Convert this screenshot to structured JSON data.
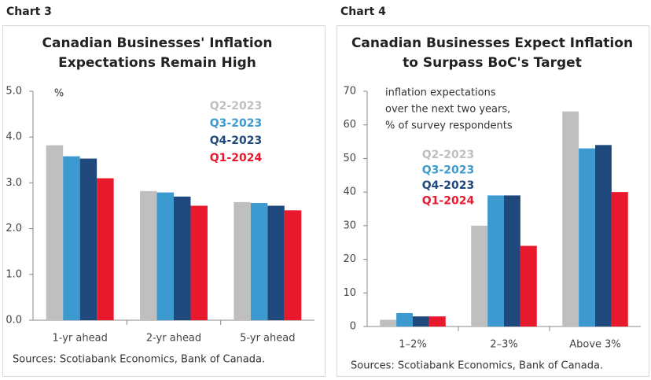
{
  "chart_data": [
    {
      "type": "bar",
      "label": "Chart 3",
      "title": [
        "Canadian Businesses' Inflation",
        "Expectations Remain High"
      ],
      "annotation": [
        "%"
      ],
      "categories": [
        "1-yr ahead",
        "2-yr ahead",
        "5-yr ahead"
      ],
      "series": [
        {
          "name": "Q2-2023",
          "color": "#bfbfbf",
          "values": [
            3.82,
            2.82,
            2.58
          ]
        },
        {
          "name": "Q3-2023",
          "color": "#3d9ad1",
          "values": [
            3.58,
            2.79,
            2.56
          ]
        },
        {
          "name": "Q4-2023",
          "color": "#1f497d",
          "values": [
            3.53,
            2.7,
            2.5
          ]
        },
        {
          "name": "Q1-2024",
          "color": "#e8192c",
          "values": [
            3.1,
            2.5,
            2.4
          ]
        }
      ],
      "ylim": [
        0,
        5
      ],
      "yticks": [
        {
          "value": 0,
          "label": "0.0"
        },
        {
          "value": 1,
          "label": "1.0"
        },
        {
          "value": 2,
          "label": "2.0"
        },
        {
          "value": 3,
          "label": "3.0"
        },
        {
          "value": 4,
          "label": "4.0"
        },
        {
          "value": 5,
          "label": "5.0"
        }
      ],
      "source": "Sources: Scotiabank Economics, Bank of Canada."
    },
    {
      "type": "bar",
      "label": "Chart 4",
      "title": [
        "Canadian Businesses Expect Inflation",
        "to Surpass BoC's Target"
      ],
      "annotation": [
        "inflation expectations",
        "over the next two years,",
        "% of survey respondents"
      ],
      "categories": [
        "1–2%",
        "2–3%",
        "Above 3%"
      ],
      "series": [
        {
          "name": "Q2-2023",
          "color": "#bfbfbf",
          "values": [
            2,
            30,
            64
          ]
        },
        {
          "name": "Q3-2023",
          "color": "#3d9ad1",
          "values": [
            4,
            39,
            53
          ]
        },
        {
          "name": "Q4-2023",
          "color": "#1f497d",
          "values": [
            3,
            39,
            54
          ]
        },
        {
          "name": "Q1-2024",
          "color": "#e8192c",
          "values": [
            3,
            24,
            40
          ]
        }
      ],
      "ylim": [
        0,
        70
      ],
      "yticks": [
        0,
        10,
        20,
        30,
        40,
        50,
        60,
        70
      ],
      "source": "Sources: Scotiabank Economics, Bank of Canada."
    }
  ]
}
